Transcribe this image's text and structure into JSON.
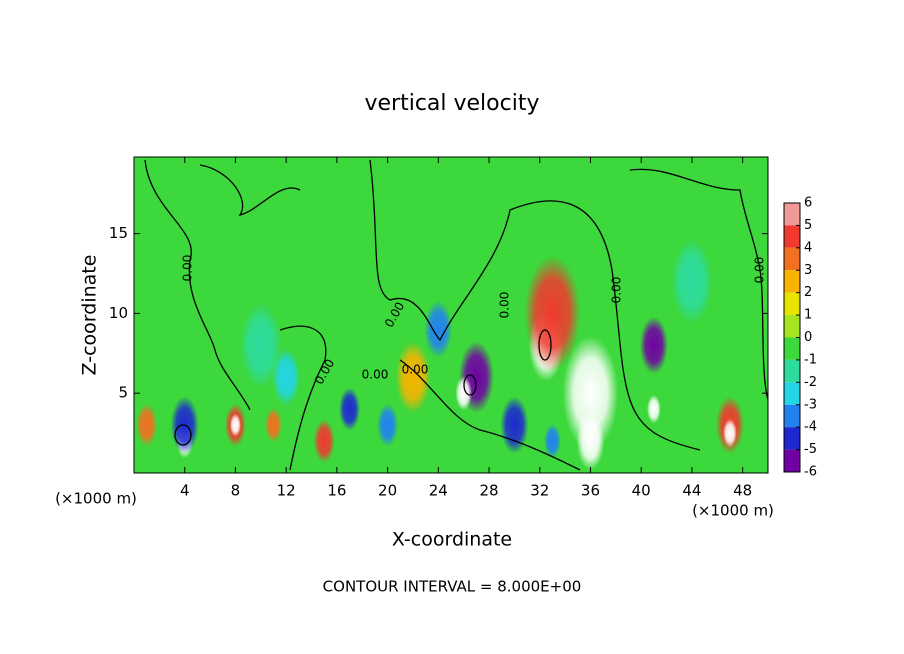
{
  "chart_data": {
    "type": "contour",
    "title": "vertical velocity",
    "xlabel": "X-coordinate",
    "ylabel": "Z-coordinate",
    "x_unit": "(×1000 m)",
    "y_unit": "(×1000 m)",
    "footer": "CONTOUR INTERVAL = 8.000E+00",
    "contour_labels": [
      "0.00",
      "0.00",
      "0.00",
      "0.00",
      "0.00",
      "0.00",
      "0.00",
      "0.00"
    ],
    "xlim": [
      0,
      50
    ],
    "ylim": [
      0,
      19.8
    ],
    "xticks": [
      4,
      8,
      12,
      16,
      20,
      24,
      28,
      32,
      36,
      40,
      44,
      48
    ],
    "yticks": [
      5,
      10,
      15
    ],
    "cbar_ticks": [
      6,
      5,
      4,
      3,
      2,
      1,
      0,
      -1,
      -2,
      -3,
      -4,
      -5,
      -6
    ],
    "cbar_colors": [
      "#f29a9a",
      "#f03a2e",
      "#f27020",
      "#f8b400",
      "#e8e400",
      "#a6e41e",
      "#3cd83c",
      "#2edc9e",
      "#22d6e6",
      "#2282f0",
      "#1e28d0",
      "#7000a4"
    ],
    "x": [
      32.5,
      33,
      36,
      36,
      27,
      26,
      41,
      41,
      47,
      47,
      8,
      8,
      4,
      4,
      1,
      11,
      15,
      17,
      22,
      30,
      24,
      12,
      20,
      33,
      10,
      44
    ],
    "y": [
      8,
      10,
      5,
      2,
      6,
      5,
      8,
      4,
      3,
      2.5,
      3,
      3,
      2,
      3,
      3,
      3,
      2,
      4,
      6,
      3,
      9,
      6,
      3,
      2,
      8,
      12
    ],
    "values": [
      7,
      5,
      6,
      7,
      -5,
      7,
      -5,
      7,
      5,
      7,
      5,
      7,
      7,
      -4,
      4,
      4,
      5,
      -4,
      3,
      -4,
      -3,
      -2,
      -3,
      -3,
      -1,
      -1
    ],
    "sizes": [
      2.5,
      4,
      4,
      2,
      2.5,
      1.2,
      2,
      1,
      2,
      1,
      1.5,
      0.8,
      1.2,
      2,
      1.5,
      1.2,
      1.5,
      1.5,
      2.5,
      2,
      2,
      2,
      1.5,
      1.2,
      3,
      3
    ]
  }
}
